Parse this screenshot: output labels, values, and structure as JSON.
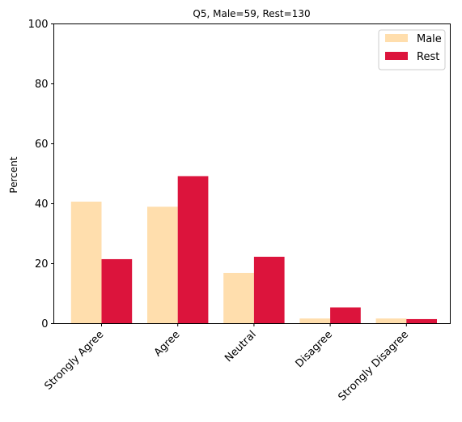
{
  "chart_data": {
    "type": "bar",
    "title": "Q5, Male=59, Rest=130",
    "xlabel": "",
    "ylabel": "Percent",
    "ylim": [
      0,
      100
    ],
    "yticks": [
      0,
      20,
      40,
      60,
      80,
      100
    ],
    "categories": [
      "Strongly Agree",
      "Agree",
      "Neutral",
      "Disagree",
      "Strongly Disagree"
    ],
    "series": [
      {
        "name": "Male",
        "color": "#ffdead",
        "values": [
          40.7,
          39.0,
          16.9,
          1.7,
          1.7
        ]
      },
      {
        "name": "Rest",
        "color": "#dc143c",
        "values": [
          21.5,
          49.2,
          22.3,
          5.4,
          1.5
        ]
      }
    ],
    "grid": false,
    "legend_position": "top-right"
  }
}
